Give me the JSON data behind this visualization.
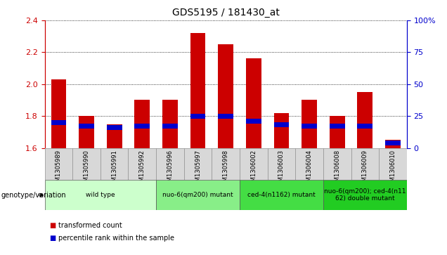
{
  "title": "GDS5195 / 181430_at",
  "samples": [
    "GSM1305989",
    "GSM1305990",
    "GSM1305991",
    "GSM1305992",
    "GSM1305996",
    "GSM1305997",
    "GSM1305998",
    "GSM1306002",
    "GSM1306003",
    "GSM1306004",
    "GSM1306008",
    "GSM1306009",
    "GSM1306010"
  ],
  "red_values": [
    2.03,
    1.8,
    1.75,
    1.9,
    1.9,
    2.32,
    2.25,
    2.16,
    1.82,
    1.9,
    1.8,
    1.95,
    1.65
  ],
  "blue_values": [
    20,
    17,
    16,
    17,
    17,
    25,
    25,
    21,
    18,
    17,
    17,
    17,
    4
  ],
  "ylim_left": [
    1.6,
    2.4
  ],
  "ylim_right": [
    0,
    100
  ],
  "yticks_left": [
    1.6,
    1.8,
    2.0,
    2.2,
    2.4
  ],
  "yticks_right": [
    0,
    25,
    50,
    75,
    100
  ],
  "groups": [
    {
      "label": "wild type",
      "start": 0,
      "end": 4,
      "color": "#ccffcc"
    },
    {
      "label": "nuo-6(qm200) mutant",
      "start": 4,
      "end": 7,
      "color": "#88ee88"
    },
    {
      "label": "ced-4(n1162) mutant",
      "start": 7,
      "end": 10,
      "color": "#44dd44"
    },
    {
      "label": "nuo-6(qm200); ced-4(n11\n62) double mutant",
      "start": 10,
      "end": 13,
      "color": "#22cc22"
    }
  ],
  "group_label_prefix": "genotype/variation",
  "legend_items": [
    {
      "label": "transformed count",
      "color": "#cc0000"
    },
    {
      "label": "percentile rank within the sample",
      "color": "#0000cc"
    }
  ],
  "bar_width": 0.55,
  "left_axis_color": "#cc0000",
  "right_axis_color": "#0000cc"
}
